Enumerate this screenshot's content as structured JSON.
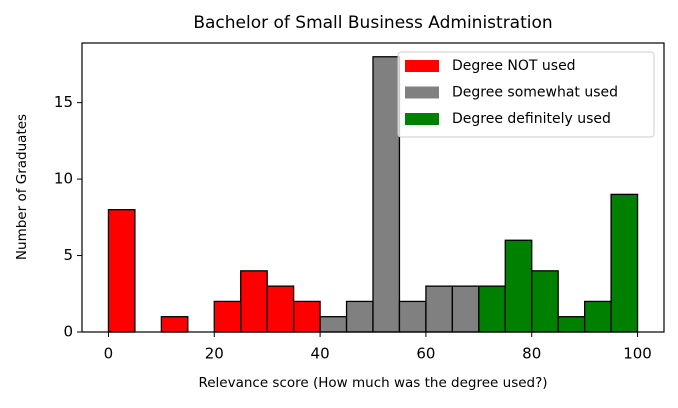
{
  "chart_data": {
    "type": "histogram",
    "title": "Bachelor of Small Business Administration",
    "x_label": "Relevance score (How much was the degree used?)",
    "y_label": "Number of Graduates",
    "series": [
      {
        "name": "Degree NOT used",
        "color": "#ff0000",
        "bins": [
          0,
          5,
          10,
          15,
          20,
          25,
          30,
          35,
          40
        ],
        "values": [
          8,
          0,
          1,
          0,
          2,
          4,
          3,
          2
        ]
      },
      {
        "name": "Degree somewhat used",
        "color": "#808080",
        "bins": [
          40,
          45,
          50,
          55,
          60,
          65,
          70
        ],
        "values": [
          1,
          2,
          18,
          2,
          3,
          3
        ]
      },
      {
        "name": "Degree definitely used",
        "color": "#008000",
        "bins": [
          70,
          75,
          80,
          85,
          90,
          95,
          100
        ],
        "values": [
          3,
          6,
          4,
          1,
          2,
          9
        ]
      }
    ],
    "xlim": [
      -5,
      105
    ],
    "xticks": [
      0,
      20,
      40,
      60,
      80,
      100
    ],
    "ylim": [
      0,
      18.9
    ],
    "yticks": [
      0,
      5,
      10,
      15
    ],
    "legend": "upper right"
  }
}
